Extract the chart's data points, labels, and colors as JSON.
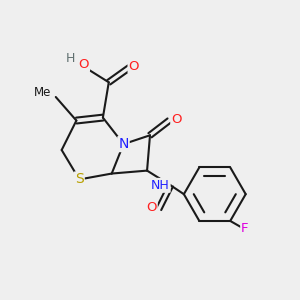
{
  "bg_color": "#efefef",
  "bond_color": "#1a1a1a",
  "atom_colors": {
    "N": "#2020ff",
    "O": "#ff2020",
    "S": "#b8a000",
    "F": "#dd00dd",
    "H": "#607070",
    "C": "#1a1a1a"
  },
  "lw": 1.5,
  "fs": 8.5
}
